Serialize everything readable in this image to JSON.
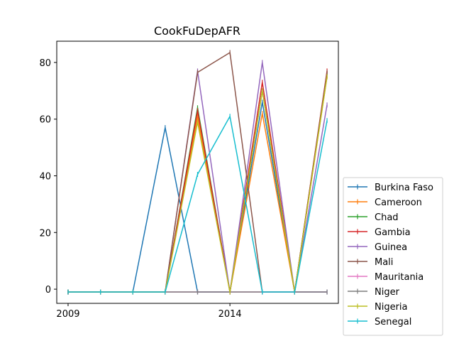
{
  "chart_data": {
    "type": "line",
    "title": "CookFuDepAFR",
    "xlabel": "",
    "ylabel": "",
    "xlim": [
      2008.65,
      2017.35
    ],
    "ylim": [
      -5,
      87.5
    ],
    "x": [
      2009,
      2010,
      2011,
      2012,
      2013,
      2014,
      2015,
      2016,
      2017
    ],
    "x_ticks": [
      2009,
      2014
    ],
    "x_tick_labels": [
      "2009",
      "2014"
    ],
    "y_ticks": [
      0,
      20,
      40,
      60,
      80
    ],
    "y_tick_labels": [
      "0",
      "20",
      "40",
      "60",
      "80"
    ],
    "grid": false,
    "legend_position": "lower-right outside plot",
    "series": [
      {
        "name": "Burkina Faso",
        "color": "#1f77b4",
        "values": [
          -1,
          -1,
          -1,
          57,
          -1,
          -1,
          66,
          -1,
          -1
        ]
      },
      {
        "name": "Cameroon",
        "color": "#ff7f0e",
        "values": [
          -1,
          -1,
          -1,
          -1,
          61,
          -1,
          62,
          -1,
          75
        ]
      },
      {
        "name": "Chad",
        "color": "#2ca02c",
        "values": [
          -1,
          -1,
          -1,
          -1,
          64,
          -1,
          70,
          -1,
          76
        ]
      },
      {
        "name": "Gambia",
        "color": "#d62728",
        "values": [
          -1,
          -1,
          -1,
          -1,
          63,
          -1,
          73,
          -1,
          77
        ]
      },
      {
        "name": "Guinea",
        "color": "#9467bd",
        "values": [
          -1,
          -1,
          -1,
          -1,
          77,
          -1,
          80,
          -1,
          65
        ]
      },
      {
        "name": "Mali",
        "color": "#8c564b",
        "values": [
          -1,
          -1,
          -1,
          -1,
          76.5,
          83.5,
          -1,
          -1,
          76.5
        ]
      },
      {
        "name": "Mauritania",
        "color": "#e377c2",
        "values": [
          -1,
          -1,
          -1,
          -1,
          -1,
          -1,
          -1,
          -1,
          -1
        ]
      },
      {
        "name": "Niger",
        "color": "#7f7f7f",
        "values": [
          -1,
          -1,
          -1,
          -1,
          -1,
          -1,
          -1,
          -1,
          -1
        ]
      },
      {
        "name": "Nigeria",
        "color": "#bcbd22",
        "values": [
          -1,
          -1,
          -1,
          -1,
          59,
          -1,
          70,
          -1,
          75
        ]
      },
      {
        "name": "Senegal",
        "color": "#17becf",
        "values": [
          -1,
          -1,
          -1,
          -1,
          40.5,
          61,
          -1,
          -1,
          59.5
        ]
      }
    ]
  }
}
